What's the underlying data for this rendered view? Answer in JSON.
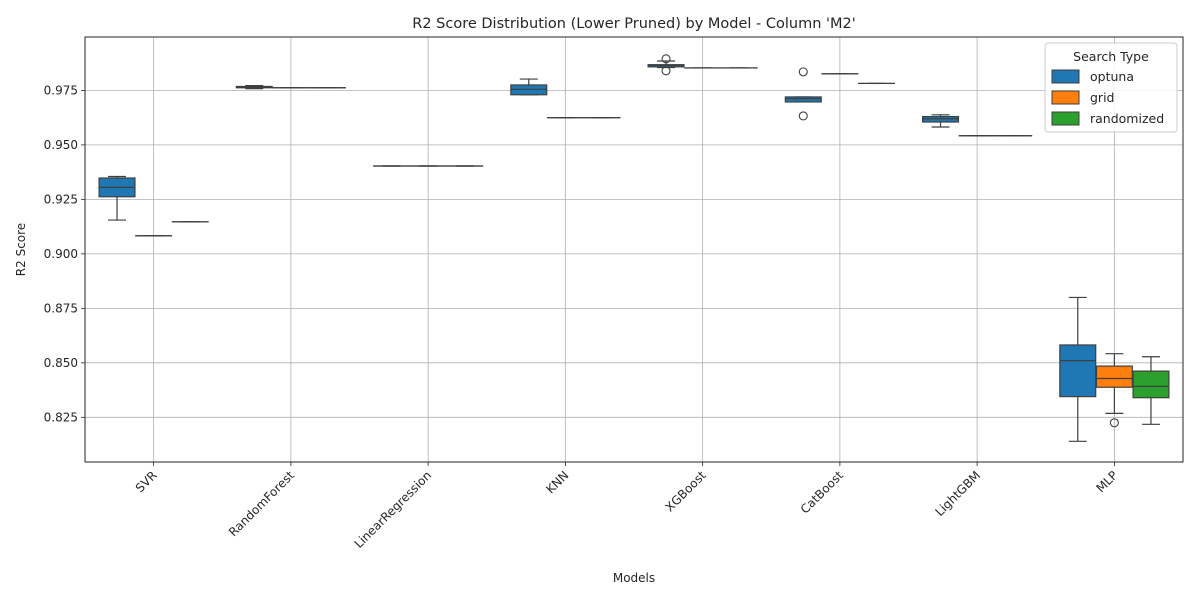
{
  "chart_data": {
    "type": "box",
    "title": "R2 Score Distribution (Lower Pruned) by Model - Column 'M2'",
    "xlabel": "Models",
    "ylabel": "R2 Score",
    "ylim": [
      0.8045,
      0.9995
    ],
    "yticks": [
      0.825,
      0.85,
      0.875,
      0.9,
      0.925,
      0.95,
      0.975
    ],
    "grid": true,
    "legend": {
      "title": "Search Type",
      "placement": "top-right"
    },
    "categories": [
      "SVR",
      "RandomForest",
      "LinearRegression",
      "KNN",
      "XGBoost",
      "CatBoost",
      "LightGBM",
      "MLP"
    ],
    "series": [
      {
        "name": "optuna",
        "color": "#1f77b4",
        "boxes": [
          {
            "min": 0.9155,
            "q1": 0.9262,
            "median": 0.9305,
            "q3": 0.9348,
            "max": 0.9355,
            "outliers": []
          },
          {
            "min": 0.9758,
            "q1": 0.9762,
            "median": 0.9765,
            "q3": 0.9768,
            "max": 0.9772,
            "outliers": []
          },
          {
            "min": 0.9403,
            "q1": 0.9403,
            "median": 0.9403,
            "q3": 0.9403,
            "max": 0.9403,
            "outliers": []
          },
          {
            "min": 0.973,
            "q1": 0.973,
            "median": 0.9755,
            "q3": 0.9775,
            "max": 0.9802,
            "outliers": []
          },
          {
            "min": 0.9855,
            "q1": 0.9858,
            "median": 0.9865,
            "q3": 0.9868,
            "max": 0.9885,
            "outliers": [
              0.9895,
              0.984
            ]
          },
          {
            "min": 0.9697,
            "q1": 0.9697,
            "median": 0.9712,
            "q3": 0.972,
            "max": 0.972,
            "outliers": [
              0.9835,
              0.9633
            ]
          },
          {
            "min": 0.9582,
            "q1": 0.9605,
            "median": 0.962,
            "q3": 0.963,
            "max": 0.9638,
            "outliers": []
          },
          {
            "min": 0.814,
            "q1": 0.8345,
            "median": 0.851,
            "q3": 0.8582,
            "max": 0.88,
            "outliers": []
          }
        ]
      },
      {
        "name": "grid",
        "color": "#ff7f0e",
        "boxes": [
          {
            "min": 0.9083,
            "q1": 0.9083,
            "median": 0.9083,
            "q3": 0.9083,
            "max": 0.9083,
            "outliers": []
          },
          {
            "min": 0.9762,
            "q1": 0.9762,
            "median": 0.9762,
            "q3": 0.9762,
            "max": 0.9762,
            "outliers": []
          },
          {
            "min": 0.9403,
            "q1": 0.9403,
            "median": 0.9403,
            "q3": 0.9403,
            "max": 0.9403,
            "outliers": []
          },
          {
            "min": 0.9625,
            "q1": 0.9625,
            "median": 0.9625,
            "q3": 0.9625,
            "max": 0.9625,
            "outliers": []
          },
          {
            "min": 0.9853,
            "q1": 0.9853,
            "median": 0.9853,
            "q3": 0.9853,
            "max": 0.9853,
            "outliers": []
          },
          {
            "min": 0.9826,
            "q1": 0.9826,
            "median": 0.9826,
            "q3": 0.9826,
            "max": 0.9826,
            "outliers": []
          },
          {
            "min": 0.9542,
            "q1": 0.9542,
            "median": 0.9542,
            "q3": 0.9542,
            "max": 0.9542,
            "outliers": []
          },
          {
            "min": 0.8268,
            "q1": 0.8388,
            "median": 0.8428,
            "q3": 0.8485,
            "max": 0.8542,
            "outliers": [
              0.8225
            ]
          }
        ]
      },
      {
        "name": "randomized",
        "color": "#2ca02c",
        "boxes": [
          {
            "min": 0.9147,
            "q1": 0.9147,
            "median": 0.9147,
            "q3": 0.9147,
            "max": 0.9147,
            "outliers": []
          },
          {
            "min": 0.9762,
            "q1": 0.9762,
            "median": 0.9762,
            "q3": 0.9762,
            "max": 0.9762,
            "outliers": []
          },
          {
            "min": 0.9403,
            "q1": 0.9403,
            "median": 0.9403,
            "q3": 0.9403,
            "max": 0.9403,
            "outliers": []
          },
          {
            "min": 0.9625,
            "q1": 0.9625,
            "median": 0.9625,
            "q3": 0.9625,
            "max": 0.9625,
            "outliers": []
          },
          {
            "min": 0.9853,
            "q1": 0.9853,
            "median": 0.9853,
            "q3": 0.9853,
            "max": 0.9853,
            "outliers": []
          },
          {
            "min": 0.9782,
            "q1": 0.9782,
            "median": 0.9782,
            "q3": 0.9782,
            "max": 0.9782,
            "outliers": []
          },
          {
            "min": 0.9542,
            "q1": 0.9542,
            "median": 0.9542,
            "q3": 0.9542,
            "max": 0.9542,
            "outliers": []
          },
          {
            "min": 0.8218,
            "q1": 0.834,
            "median": 0.8392,
            "q3": 0.8462,
            "max": 0.8528,
            "outliers": []
          }
        ]
      }
    ]
  }
}
